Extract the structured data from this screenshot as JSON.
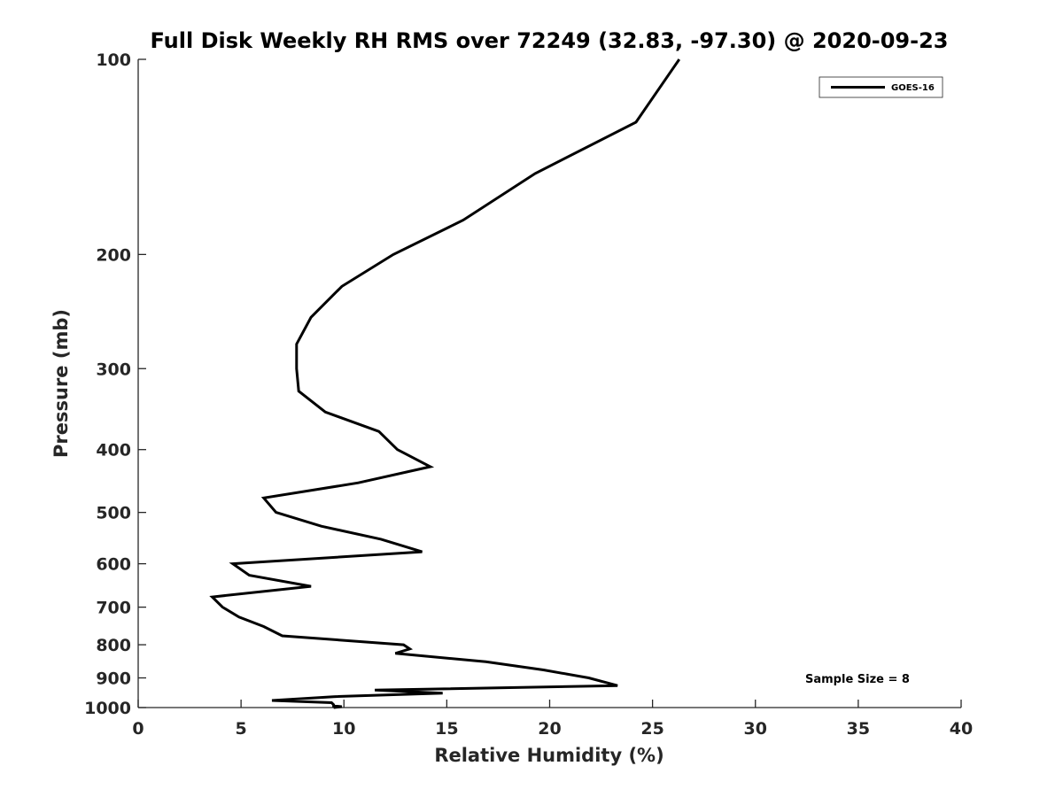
{
  "chart_data": {
    "type": "line",
    "title": "Full Disk Weekly RH RMS over 72249 (32.83, -97.30) @ 2020-09-23",
    "xlabel": "Relative Humidity (%)",
    "ylabel": "Pressure (mb)",
    "xlim": [
      0,
      40
    ],
    "ylim": [
      100,
      1000
    ],
    "y_scale": "log",
    "y_reversed": true,
    "grid": false,
    "legend_position": "top-right",
    "x_ticks": [
      "0",
      "5",
      "10",
      "15",
      "20",
      "25",
      "30",
      "35",
      "40"
    ],
    "y_ticks": [
      "100",
      "200",
      "300",
      "400",
      "500",
      "600",
      "700",
      "800",
      "900",
      "1000"
    ],
    "series": [
      {
        "name": "GOES-16",
        "color": "#000000",
        "points": [
          [
            26.3,
            100
          ],
          [
            24.2,
            125
          ],
          [
            19.3,
            150
          ],
          [
            15.8,
            177
          ],
          [
            12.4,
            200
          ],
          [
            9.9,
            224
          ],
          [
            8.4,
            250
          ],
          [
            7.7,
            275
          ],
          [
            7.7,
            300
          ],
          [
            7.8,
            325
          ],
          [
            9.1,
            350
          ],
          [
            11.7,
            375
          ],
          [
            12.6,
            400
          ],
          [
            14.2,
            425
          ],
          [
            10.7,
            450
          ],
          [
            6.1,
            475
          ],
          [
            6.7,
            500
          ],
          [
            8.9,
            525
          ],
          [
            11.8,
            550
          ],
          [
            13.8,
            575
          ],
          [
            4.6,
            600
          ],
          [
            5.4,
            625
          ],
          [
            8.4,
            650
          ],
          [
            3.6,
            675
          ],
          [
            4.1,
            700
          ],
          [
            4.9,
            725
          ],
          [
            6.1,
            750
          ],
          [
            7.0,
            775
          ],
          [
            12.9,
            800
          ],
          [
            13.2,
            812
          ],
          [
            12.5,
            825
          ],
          [
            16.9,
            850
          ],
          [
            19.7,
            875
          ],
          [
            21.9,
            900
          ],
          [
            23.3,
            925
          ],
          [
            11.5,
            940
          ],
          [
            14.8,
            950
          ],
          [
            9.5,
            962
          ],
          [
            6.5,
            975
          ],
          [
            9.4,
            983
          ],
          [
            9.5,
            990
          ],
          [
            9.5,
            994
          ],
          [
            9.9,
            997
          ],
          [
            9.6,
            999
          ],
          [
            9.5,
            1000
          ]
        ]
      }
    ],
    "legend": [
      "GOES-16"
    ],
    "annotation": "Sample Size = 8"
  }
}
